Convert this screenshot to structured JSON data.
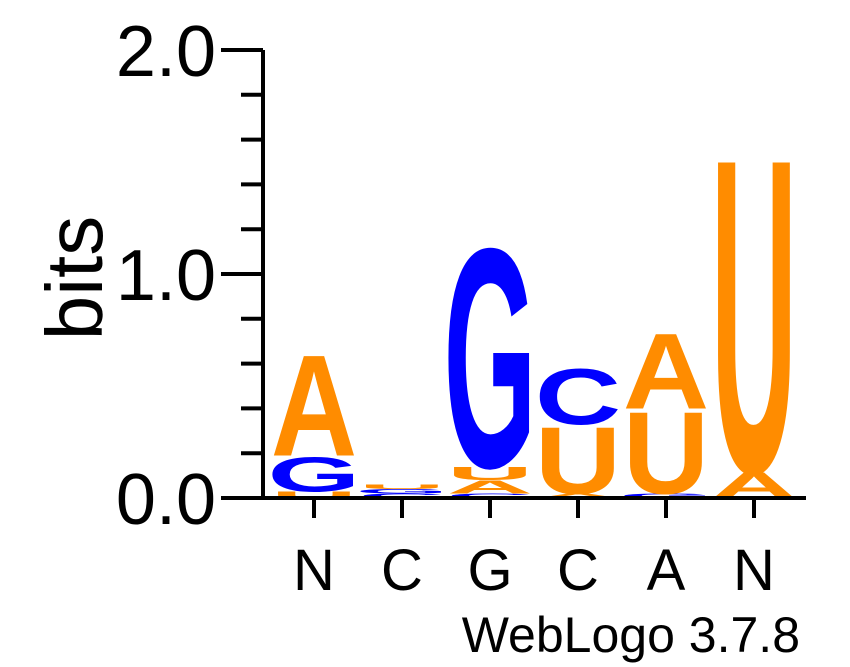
{
  "chart_data": {
    "type": "sequence-logo",
    "ylabel": "bits",
    "ylim": [
      0,
      2.0
    ],
    "yticks": [
      "0.0",
      "1.0",
      "2.0"
    ],
    "positions": [
      {
        "label": "N",
        "stack": [
          {
            "letter": "U",
            "bits": 0.03
          },
          {
            "letter": "G",
            "bits": 0.16
          },
          {
            "letter": "A",
            "bits": 0.47
          }
        ]
      },
      {
        "label": "C",
        "stack": [
          {
            "letter": "C",
            "bits": 0.02
          },
          {
            "letter": "G",
            "bits": 0.02
          },
          {
            "letter": "U",
            "bits": 0.02
          }
        ]
      },
      {
        "label": "G",
        "stack": [
          {
            "letter": "C",
            "bits": 0.02
          },
          {
            "letter": "A",
            "bits": 0.06
          },
          {
            "letter": "U",
            "bits": 0.06
          },
          {
            "letter": "G",
            "bits": 1.02
          }
        ]
      },
      {
        "label": "C",
        "stack": [
          {
            "letter": "A",
            "bits": 0.02
          },
          {
            "letter": "U",
            "bits": 0.31
          },
          {
            "letter": "C",
            "bits": 0.26
          }
        ]
      },
      {
        "label": "A",
        "stack": [
          {
            "letter": "G",
            "bits": 0.02
          },
          {
            "letter": "U",
            "bits": 0.38
          },
          {
            "letter": "A",
            "bits": 0.35
          }
        ]
      },
      {
        "label": "N",
        "stack": [
          {
            "letter": "A",
            "bits": 0.12
          },
          {
            "letter": "U",
            "bits": 1.46
          }
        ]
      }
    ],
    "colors": {
      "A": "#ff8c00",
      "U": "#ff8c00",
      "G": "#0000ff",
      "C": "#0000ff"
    },
    "footer": "WebLogo 3.7.8"
  }
}
